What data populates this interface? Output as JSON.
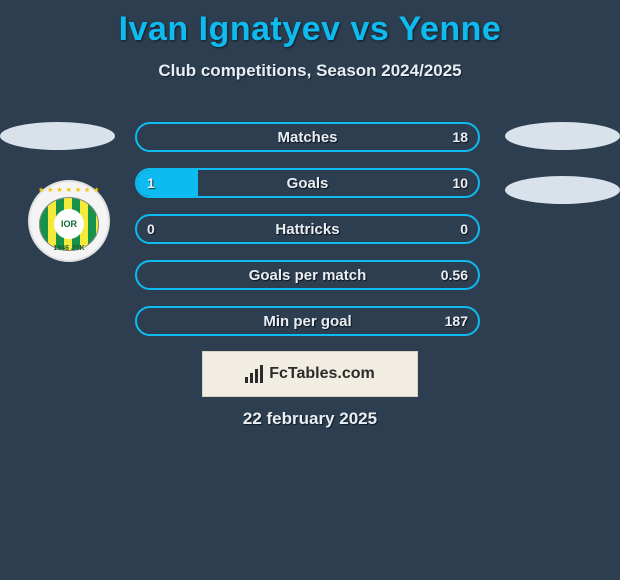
{
  "header": {
    "title": "Ivan Ignatyev vs Yenne",
    "subtitle": "Club competitions, Season 2024/2025",
    "title_color": "#0dbbf0"
  },
  "brand": {
    "label": "FcTables.com",
    "bg": "#f2ede3"
  },
  "date": "22 february 2025",
  "bars": {
    "accent": "#0dbbf0",
    "bg": "#2d3e50",
    "rows": [
      {
        "label": "Matches",
        "left": "",
        "right": "18",
        "fill_pct": 0
      },
      {
        "label": "Goals",
        "left": "1",
        "right": "10",
        "fill_pct": 18
      },
      {
        "label": "Hattricks",
        "left": "0",
        "right": "0",
        "fill_pct": 0
      },
      {
        "label": "Goals per match",
        "left": "",
        "right": "0.56",
        "fill_pct": 0
      },
      {
        "label": "Min per goal",
        "left": "",
        "right": "187",
        "fill_pct": 0
      }
    ]
  },
  "badge": {
    "initials": "IOR",
    "years": "1946   JSK",
    "colors": {
      "stripe_a": "#16924a",
      "stripe_b": "#f5e93a"
    }
  }
}
